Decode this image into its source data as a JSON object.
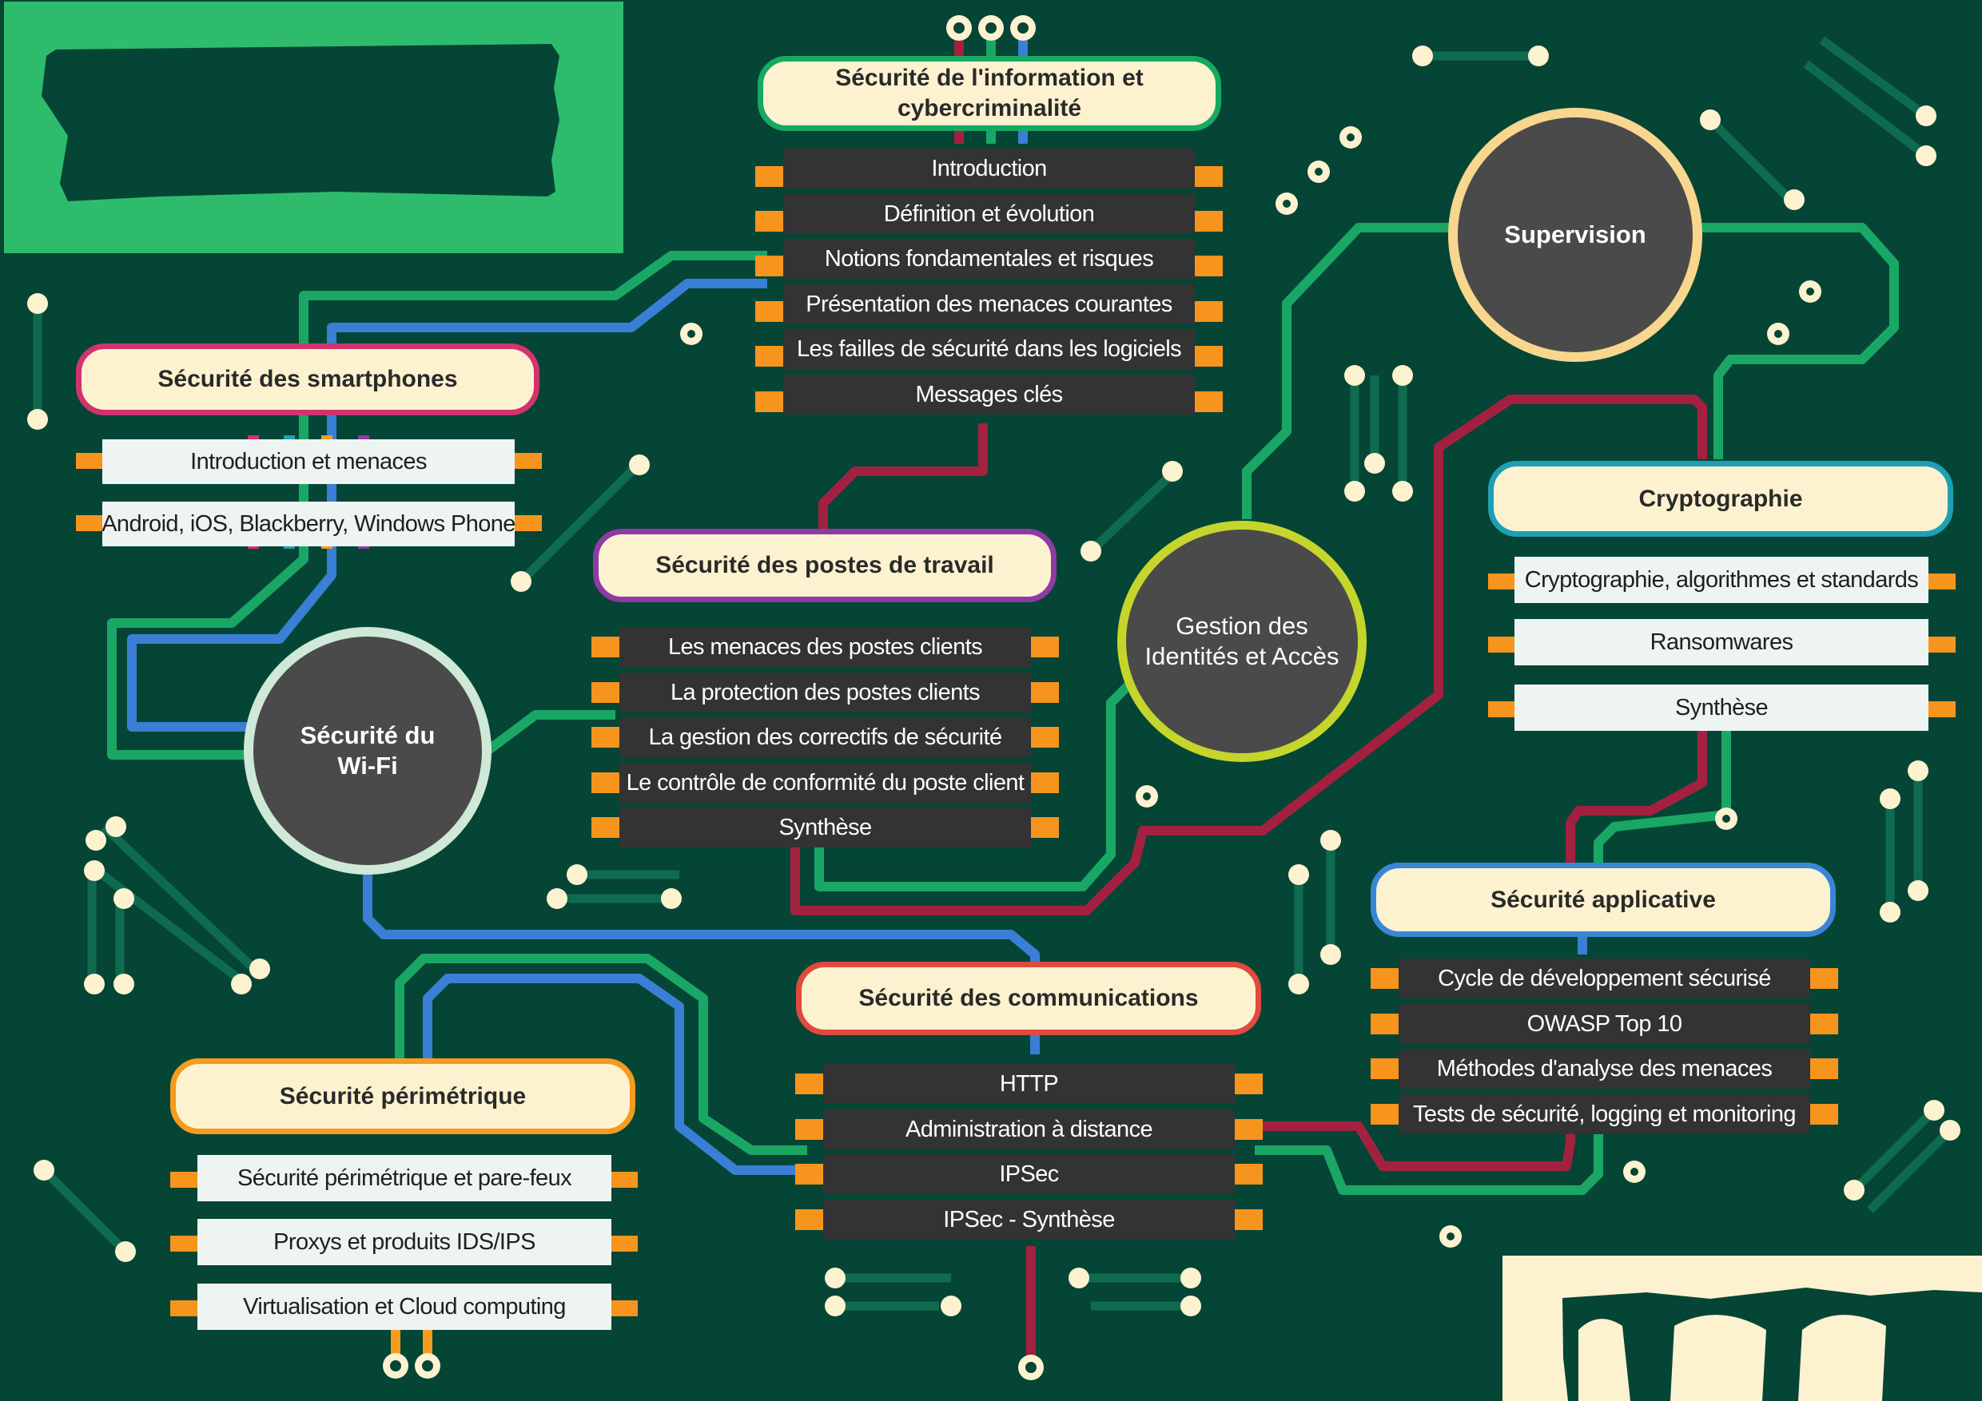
{
  "colors": {
    "background": "#054535",
    "cream": "#fdf2cf",
    "chip": "#333333",
    "pin": "#f7941d",
    "trace_green": "#1aa765",
    "trace_blue": "#3b7ed6",
    "trace_red": "#a3213f",
    "trace_dark": "#0f6b4f"
  },
  "modules": {
    "info_security": {
      "title": "Sécurité de l'information et cybercriminalité",
      "border_color": "#17a861",
      "items": [
        "Introduction",
        "Définition et évolution",
        "Notions fondamentales et risques",
        "Présentation des menaces courantes",
        "Les failles de sécurité dans les logiciels",
        "Messages clés"
      ]
    },
    "smartphones": {
      "title": "Sécurité des smartphones",
      "border_color": "#d1336f",
      "items": [
        "Introduction et menaces",
        "Android, iOS, Blackberry, Windows Phone"
      ]
    },
    "workstations": {
      "title": "Sécurité des postes de travail",
      "border_color": "#8e3aa5",
      "items": [
        "Les menaces des postes clients",
        "La protection des postes clients",
        "La gestion des correctifs de sécurité",
        "Le contrôle de conformité du poste client",
        "Synthèse"
      ]
    },
    "cryptography": {
      "title": "Cryptographie",
      "border_color": "#1e9fb4",
      "items": [
        "Cryptographie, algorithmes et standards",
        "Ransomwares",
        "Synthèse"
      ]
    },
    "application": {
      "title": "Sécurité applicative",
      "border_color": "#3a86d6",
      "items": [
        "Cycle de développement sécurisé",
        "OWASP Top 10",
        "Méthodes d'analyse des menaces",
        "Tests de sécurité, logging et monitoring"
      ]
    },
    "communications": {
      "title": "Sécurité des communications",
      "border_color": "#e04a3f",
      "items": [
        "HTTP",
        "Administration à distance",
        "IPSec",
        "IPSec - Synthèse"
      ]
    },
    "perimeter": {
      "title": "Sécurité périmétrique",
      "border_color": "#f59b1d",
      "items": [
        "Sécurité périmétrique et pare-feux",
        "Proxys et produits IDS/IPS",
        "Virtualisation et Cloud computing"
      ]
    }
  },
  "circles": {
    "supervision": {
      "label": "Supervision",
      "border_color": "#f8d68e"
    },
    "iam": {
      "label": "Gestion des Identités et Accès",
      "border_color": "#c6d52c"
    },
    "wifi": {
      "label": "Sécurité du Wi-Fi",
      "border_color": "#cfe8d8"
    }
  }
}
